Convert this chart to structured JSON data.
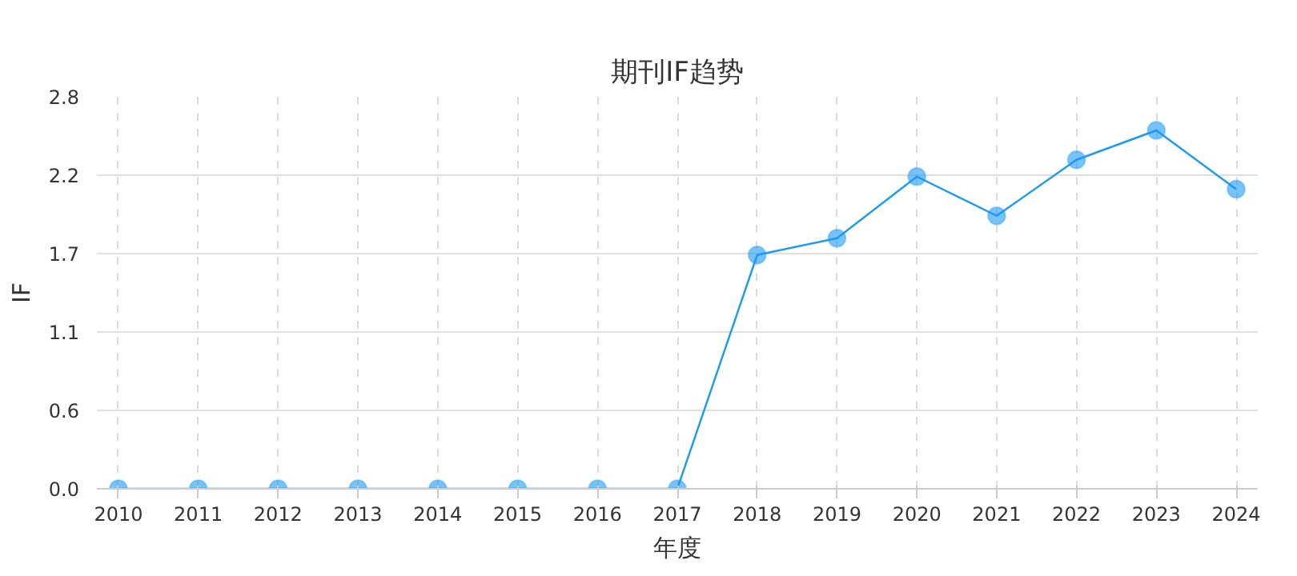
{
  "chart_data": {
    "type": "line",
    "title": "期刊IF趋势",
    "xlabel": "年度",
    "ylabel": "IF",
    "categories": [
      "2010",
      "2011",
      "2012",
      "2013",
      "2014",
      "2015",
      "2016",
      "2017",
      "2018",
      "2019",
      "2020",
      "2021",
      "2022",
      "2023",
      "2024"
    ],
    "series": [
      {
        "color": "#1a9af5",
        "values": [
          0,
          0,
          0,
          0,
          0,
          0,
          0,
          0,
          1.67,
          1.79,
          2.23,
          1.95,
          2.35,
          2.56,
          2.14
        ]
      }
    ],
    "ylim": [
      0,
      2.8
    ],
    "yticks": [
      {
        "value": 0,
        "label": "0.0"
      },
      {
        "value": 0.56,
        "label": "0.6"
      },
      {
        "value": 1.12,
        "label": "1.1"
      },
      {
        "value": 1.68,
        "label": "1.7"
      },
      {
        "value": 2.24,
        "label": "2.2"
      },
      {
        "value": 2.8,
        "label": "2.8"
      }
    ],
    "grid": true,
    "marker": "circle",
    "line_style": "solid"
  }
}
